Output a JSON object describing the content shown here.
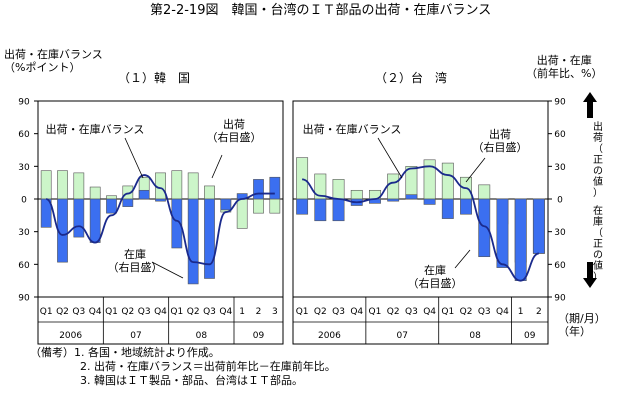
{
  "figure": {
    "title": "第2-2-19図　韓国・台湾のＩＴ部品の出荷・在庫バランス",
    "left_axis_label": "出荷・在庫バランス\n（%ポイント）",
    "right_axis_label": "出荷・在庫\n（前年比、%）",
    "right_axis_up_label": "出荷（正の値）",
    "right_axis_down_label": "在庫（正の値）",
    "period_unit": "（期/月）\n（年）",
    "notes": [
      "（備考）1. 各国・地域統計より作成。",
      "2. 出荷・在庫バランス＝出荷前年比－在庫前年比。",
      "3. 韓国はＩＴ製品・部品、台湾はＩＴ部品。"
    ],
    "colors": {
      "shipment": "#ccf5c9",
      "inventory": "#3b6ff0",
      "balance": "#1a2a8c",
      "up_arrow": "#000000"
    }
  },
  "chart_data": [
    {
      "type": "bar",
      "panel": "korea",
      "title": "（１）韓　国",
      "y_left": {
        "ticks": [
          "90",
          "60",
          "30",
          "0",
          "30",
          "60",
          "90"
        ],
        "range": [
          -90,
          90
        ]
      },
      "categories": [
        "Q1",
        "Q2",
        "Q3",
        "Q4",
        "Q1",
        "Q2",
        "Q3",
        "Q4",
        "Q1",
        "Q2",
        "Q3",
        "Q4",
        "1",
        "2",
        "3"
      ],
      "years": [
        {
          "label": "2006",
          "span": [
            0,
            3
          ]
        },
        {
          "label": "07",
          "span": [
            4,
            7
          ]
        },
        {
          "label": "08",
          "span": [
            8,
            11
          ]
        },
        {
          "label": "09",
          "span": [
            12,
            14
          ]
        }
      ],
      "series": [
        {
          "name": "出荷",
          "values": [
            26,
            26,
            24,
            11,
            3,
            12,
            20,
            24,
            26,
            24,
            12,
            -12,
            -27,
            -13,
            -13
          ]
        },
        {
          "name": "在庫",
          "values": [
            -26,
            -58,
            -35,
            -40,
            -13,
            -7,
            8,
            -2,
            -45,
            -78,
            -73,
            -10,
            5,
            18,
            20
          ]
        },
        {
          "name": "出荷・在庫バランス",
          "values": [
            0,
            -33,
            -25,
            -40,
            -15,
            5,
            22,
            10,
            -20,
            -58,
            -60,
            -12,
            0,
            5,
            5
          ]
        }
      ],
      "annotations": [
        "出荷・在庫バランス",
        "出荷\n（右目盛）",
        "在庫\n（右目盛）"
      ]
    },
    {
      "type": "bar",
      "panel": "taiwan",
      "title": "（２）台　湾",
      "y_right": {
        "ticks": [
          "90",
          "60",
          "30",
          "0",
          "30",
          "60",
          "90"
        ],
        "range": [
          -90,
          90
        ]
      },
      "categories": [
        "Q1",
        "Q2",
        "Q3",
        "Q4",
        "Q1",
        "Q2",
        "Q3",
        "Q4",
        "Q1",
        "Q2",
        "Q3",
        "Q4",
        "1",
        "2"
      ],
      "years": [
        {
          "label": "2006",
          "span": [
            0,
            3
          ]
        },
        {
          "label": "07",
          "span": [
            4,
            7
          ]
        },
        {
          "label": "08",
          "span": [
            8,
            11
          ]
        },
        {
          "label": "09",
          "span": [
            12,
            13
          ]
        }
      ],
      "series": [
        {
          "name": "出荷",
          "values": [
            38,
            23,
            18,
            8,
            8,
            23,
            30,
            36,
            33,
            20,
            13,
            -23,
            -58,
            -50
          ]
        },
        {
          "name": "在庫",
          "values": [
            -14,
            -20,
            -20,
            -6,
            -4,
            -2,
            4,
            -5,
            -18,
            -14,
            -53,
            -63,
            -75,
            -50
          ]
        },
        {
          "name": "出荷・在庫バランス",
          "values": [
            18,
            3,
            0,
            -3,
            0,
            15,
            28,
            30,
            22,
            10,
            -25,
            -60,
            -75,
            -50
          ]
        }
      ],
      "annotations": [
        "出荷・在庫バランス",
        "出荷\n（右目盛）",
        "在庫\n（右目盛）"
      ]
    }
  ]
}
